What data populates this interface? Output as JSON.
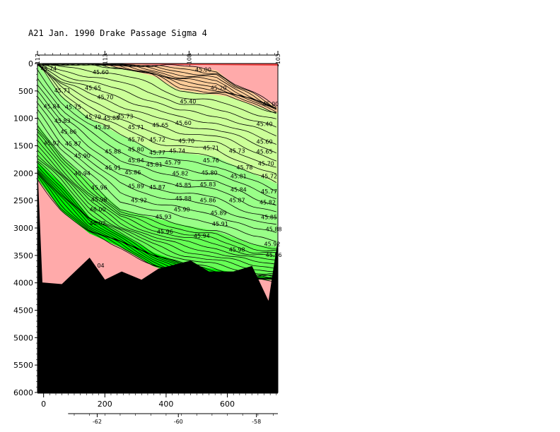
{
  "chart_data": {
    "type": "contour",
    "title": "A21 Jan. 1990 Drake Passage Sigma 4",
    "xlabel": "",
    "ylabel": "",
    "xlim": [
      -20,
      765
    ],
    "ylim": [
      6000,
      0
    ],
    "x_ticks": [
      0,
      200,
      400,
      600
    ],
    "y_ticks": [
      0,
      500,
      1000,
      1500,
      2000,
      2500,
      3000,
      3500,
      4000,
      4500,
      5000,
      5500,
      6000
    ],
    "top_axis_ticks": [
      {
        "label": "-117",
        "x": -20
      },
      {
        "label": "-113",
        "x": 200
      },
      {
        "label": "-108",
        "x": 475
      },
      {
        "label": "-103",
        "x": 765
      }
    ],
    "bottom_secondary_ticks": [
      {
        "label": "-62",
        "x": 175
      },
      {
        "label": "-60",
        "x": 440
      },
      {
        "label": "-58",
        "x": 695
      }
    ],
    "bottom_profile": [
      {
        "x": -20,
        "depth": 2000
      },
      {
        "x": -5,
        "depth": 4000
      },
      {
        "x": 60,
        "depth": 4030
      },
      {
        "x": 150,
        "depth": 3550
      },
      {
        "x": 200,
        "depth": 3950
      },
      {
        "x": 255,
        "depth": 3800
      },
      {
        "x": 320,
        "depth": 3950
      },
      {
        "x": 375,
        "depth": 3750
      },
      {
        "x": 480,
        "depth": 3600
      },
      {
        "x": 540,
        "depth": 3800
      },
      {
        "x": 620,
        "depth": 3800
      },
      {
        "x": 680,
        "depth": 3700
      },
      {
        "x": 735,
        "depth": 4350
      },
      {
        "x": 765,
        "depth": 3250
      }
    ],
    "color_bands": [
      {
        "level": 45.1,
        "color": "#ffaaaa",
        "profile": [
          [
            -20,
            0
          ],
          [
            150,
            0
          ],
          [
            250,
            0
          ],
          [
            380,
            40
          ],
          [
            440,
            50
          ],
          [
            500,
            70
          ],
          [
            565,
            120
          ],
          [
            620,
            380
          ],
          [
            680,
            520
          ],
          [
            765,
            800
          ]
        ]
      },
      {
        "level": 45.3,
        "color": "#ffcc99",
        "profile": [
          [
            -20,
            0
          ],
          [
            150,
            0
          ],
          [
            250,
            80
          ],
          [
            360,
            230
          ],
          [
            440,
            480
          ],
          [
            540,
            560
          ],
          [
            600,
            600
          ],
          [
            765,
            900
          ]
        ]
      },
      {
        "level": 45.7,
        "color": "#ccff99",
        "profile": [
          [
            -20,
            0
          ],
          [
            60,
            600
          ],
          [
            150,
            1000
          ],
          [
            250,
            1300
          ],
          [
            360,
            1580
          ],
          [
            460,
            1640
          ],
          [
            560,
            1700
          ],
          [
            680,
            2000
          ],
          [
            765,
            2200
          ]
        ]
      },
      {
        "level": 45.9,
        "color": "#99ff88",
        "profile": [
          [
            -20,
            1100
          ],
          [
            60,
            1700
          ],
          [
            150,
            2150
          ],
          [
            250,
            2650
          ],
          [
            360,
            2820
          ],
          [
            460,
            2950
          ],
          [
            560,
            3050
          ],
          [
            680,
            3300
          ],
          [
            765,
            3350
          ]
        ]
      },
      {
        "level": 45.98,
        "color": "#66ff55",
        "profile": [
          [
            -20,
            1800
          ],
          [
            60,
            2200
          ],
          [
            150,
            2800
          ],
          [
            250,
            3100
          ],
          [
            360,
            3450
          ],
          [
            460,
            3650
          ],
          [
            560,
            3750
          ],
          [
            680,
            3870
          ],
          [
            765,
            3900
          ]
        ]
      },
      {
        "level": 46.03,
        "color": "#00ee00",
        "profile": [
          [
            -20,
            2100
          ],
          [
            60,
            2700
          ],
          [
            150,
            3100
          ],
          [
            250,
            3350
          ],
          [
            360,
            3700
          ],
          [
            460,
            3900
          ],
          [
            765,
            3950
          ]
        ]
      }
    ],
    "contour_labels": [
      {
        "text": "45.74",
        "x": -10,
        "depth": 130
      },
      {
        "text": "45.60",
        "x": 160,
        "depth": 190
      },
      {
        "text": "45.00",
        "x": 495,
        "depth": 150
      },
      {
        "text": "45.20",
        "x": 545,
        "depth": 480
      },
      {
        "text": "45.00",
        "x": 715,
        "depth": 770
      },
      {
        "text": "45.71",
        "x": 35,
        "depth": 530
      },
      {
        "text": "45.65",
        "x": 135,
        "depth": 480
      },
      {
        "text": "45.70",
        "x": 175,
        "depth": 650
      },
      {
        "text": "45.40",
        "x": 445,
        "depth": 730
      },
      {
        "text": "45.84",
        "x": 0,
        "depth": 820
      },
      {
        "text": "45.75",
        "x": 70,
        "depth": 830
      },
      {
        "text": "45.79",
        "x": 135,
        "depth": 1010
      },
      {
        "text": "45.73",
        "x": 240,
        "depth": 1000
      },
      {
        "text": "45.83",
        "x": 35,
        "depth": 1080
      },
      {
        "text": "45.82",
        "x": 165,
        "depth": 1200
      },
      {
        "text": "45.71",
        "x": 275,
        "depth": 1200
      },
      {
        "text": "45.65",
        "x": 355,
        "depth": 1160
      },
      {
        "text": "45.60",
        "x": 430,
        "depth": 1120
      },
      {
        "text": "45.40",
        "x": 695,
        "depth": 1140
      },
      {
        "text": "45.86",
        "x": 55,
        "depth": 1280
      },
      {
        "text": "45.85",
        "x": 195,
        "depth": 1030
      },
      {
        "text": "45.76",
        "x": 275,
        "depth": 1420
      },
      {
        "text": "45.72",
        "x": 345,
        "depth": 1420
      },
      {
        "text": "45.70",
        "x": 440,
        "depth": 1450
      },
      {
        "text": "45.60",
        "x": 695,
        "depth": 1460
      },
      {
        "text": "45.92",
        "x": 0,
        "depth": 1490
      },
      {
        "text": "45.87",
        "x": 70,
        "depth": 1500
      },
      {
        "text": "45.88",
        "x": 200,
        "depth": 1640
      },
      {
        "text": "45.80",
        "x": 275,
        "depth": 1600
      },
      {
        "text": "45.77",
        "x": 345,
        "depth": 1660
      },
      {
        "text": "45.74",
        "x": 410,
        "depth": 1630
      },
      {
        "text": "45.71",
        "x": 520,
        "depth": 1580
      },
      {
        "text": "45.73",
        "x": 605,
        "depth": 1630
      },
      {
        "text": "45.65",
        "x": 695,
        "depth": 1640
      },
      {
        "text": "45.90",
        "x": 100,
        "depth": 1720
      },
      {
        "text": "45.84",
        "x": 275,
        "depth": 1800
      },
      {
        "text": "45.79",
        "x": 395,
        "depth": 1840
      },
      {
        "text": "45.76",
        "x": 520,
        "depth": 1800
      },
      {
        "text": "45.70",
        "x": 700,
        "depth": 1860
      },
      {
        "text": "45.81",
        "x": 335,
        "depth": 1880
      },
      {
        "text": "45.91",
        "x": 200,
        "depth": 1940
      },
      {
        "text": "45.78",
        "x": 630,
        "depth": 1930
      },
      {
        "text": "45.94",
        "x": 100,
        "depth": 2040
      },
      {
        "text": "45.86",
        "x": 265,
        "depth": 2020
      },
      {
        "text": "45.82",
        "x": 420,
        "depth": 2040
      },
      {
        "text": "45.80",
        "x": 515,
        "depth": 2030
      },
      {
        "text": "45.81",
        "x": 610,
        "depth": 2090
      },
      {
        "text": "45.72",
        "x": 710,
        "depth": 2090
      },
      {
        "text": "45.89",
        "x": 275,
        "depth": 2270
      },
      {
        "text": "45.87",
        "x": 345,
        "depth": 2290
      },
      {
        "text": "45.85",
        "x": 430,
        "depth": 2250
      },
      {
        "text": "45.83",
        "x": 510,
        "depth": 2240
      },
      {
        "text": "45.84",
        "x": 610,
        "depth": 2340
      },
      {
        "text": "45.77",
        "x": 710,
        "depth": 2370
      },
      {
        "text": "45.96",
        "x": 155,
        "depth": 2300
      },
      {
        "text": "45.98",
        "x": 155,
        "depth": 2520
      },
      {
        "text": "45.92",
        "x": 285,
        "depth": 2530
      },
      {
        "text": "45.88",
        "x": 430,
        "depth": 2500
      },
      {
        "text": "45.86",
        "x": 510,
        "depth": 2530
      },
      {
        "text": "45.87",
        "x": 605,
        "depth": 2530
      },
      {
        "text": "45.82",
        "x": 705,
        "depth": 2570
      },
      {
        "text": "46.00",
        "x": 150,
        "depth": 2700
      },
      {
        "text": "45.90",
        "x": 425,
        "depth": 2700
      },
      {
        "text": "45.89",
        "x": 545,
        "depth": 2760
      },
      {
        "text": "45.93",
        "x": 365,
        "depth": 2830
      },
      {
        "text": "45.85",
        "x": 710,
        "depth": 2840
      },
      {
        "text": "46.02",
        "x": 150,
        "depth": 2950
      },
      {
        "text": "45.91",
        "x": 550,
        "depth": 2960
      },
      {
        "text": "45.88",
        "x": 725,
        "depth": 3060
      },
      {
        "text": "45.96",
        "x": 370,
        "depth": 3100
      },
      {
        "text": "45.94",
        "x": 490,
        "depth": 3180
      },
      {
        "text": "45.92",
        "x": 720,
        "depth": 3330
      },
      {
        "text": "45.98",
        "x": 605,
        "depth": 3430
      },
      {
        "text": "45.96",
        "x": 725,
        "depth": 3530
      },
      {
        "text": "04",
        "x": 175,
        "depth": 3720
      }
    ]
  }
}
